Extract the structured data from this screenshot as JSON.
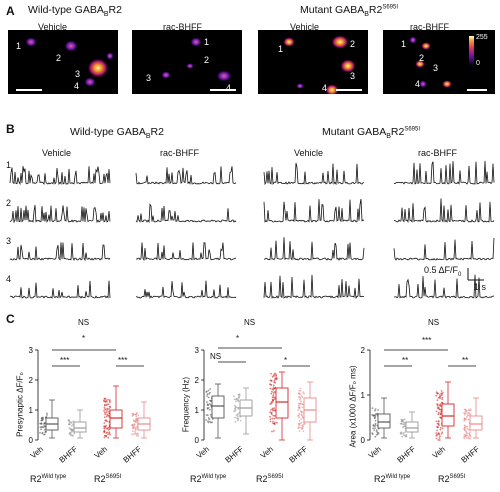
{
  "panelA": {
    "letter": "A",
    "wt_title_pre": "Wild-type GABA",
    "wt_title_sub": "B",
    "wt_title_post": "R2",
    "mut_title_pre": "Mutant GABA",
    "mut_title_sub": "B",
    "mut_title_mid": "R2",
    "mut_title_sup": "S695I",
    "conditions": [
      "Vehicle",
      "rac-BHFF",
      "Vehicle",
      "rac-BHFF"
    ],
    "roi_labels": [
      "1",
      "2",
      "3",
      "4"
    ],
    "colorbar_max": "255",
    "colorbar_min": "0"
  },
  "panelB": {
    "letter": "B",
    "wt_title_pre": "Wild-type GABA",
    "wt_title_sub": "B",
    "wt_title_post": "R2",
    "mut_title_pre": "Mutant GABA",
    "mut_title_sub": "B",
    "mut_title_mid": "R2",
    "mut_title_sup": "S695I",
    "conditions": [
      "Vehicle",
      "rac-BHFF",
      "Vehicle",
      "rac-BHFF"
    ],
    "rows": [
      "1",
      "2",
      "3",
      "4"
    ],
    "scale_y": "0.5 ΔF/F",
    "scale_y_sub": "0",
    "scale_x": "1 s"
  },
  "panelC": {
    "letter": "C",
    "plots": [
      {
        "ylabel": "Presynaptic ΔF/F₀",
        "yticks": [
          "0",
          "1",
          "2",
          "3"
        ],
        "sig_top": "NS",
        "sig_mid": "*",
        "sig_left": "***",
        "sig_right": "***",
        "xticks": [
          "Veh",
          "BHFF",
          "Veh",
          "BHFF"
        ],
        "group_left": "R2",
        "group_left_sup": "Wild type",
        "group_right": "R2",
        "group_right_sup": "S695I"
      },
      {
        "ylabel": "Frequency (Hz)",
        "yticks": [
          "0",
          "1",
          "2",
          "3"
        ],
        "sig_top": "NS",
        "sig_mid": "*",
        "sig_left": "NS",
        "sig_right": "*",
        "xticks": [
          "Veh",
          "BHFF",
          "Veh",
          "BHFF"
        ],
        "group_left": "R2",
        "group_left_sup": "Wild type",
        "group_right": "R2",
        "group_right_sup": "S695I"
      },
      {
        "ylabel": "Area (x1000 ΔF/F₀ ms)",
        "yticks": [
          "0",
          "1",
          "2"
        ],
        "sig_top": "NS",
        "sig_mid": "***",
        "sig_left": "**",
        "sig_right": "**",
        "xticks": [
          "Veh",
          "BHFF",
          "Veh",
          "BHFF"
        ],
        "group_left": "R2",
        "group_left_sup": "Wild type",
        "group_right": "R2",
        "group_right_sup": "S695I"
      }
    ]
  },
  "colors": {
    "wildtype": "#555555",
    "wildtype_light": "#9a9a9a",
    "mutant": "#d42a2a",
    "mutant_light": "#e88a8a"
  }
}
